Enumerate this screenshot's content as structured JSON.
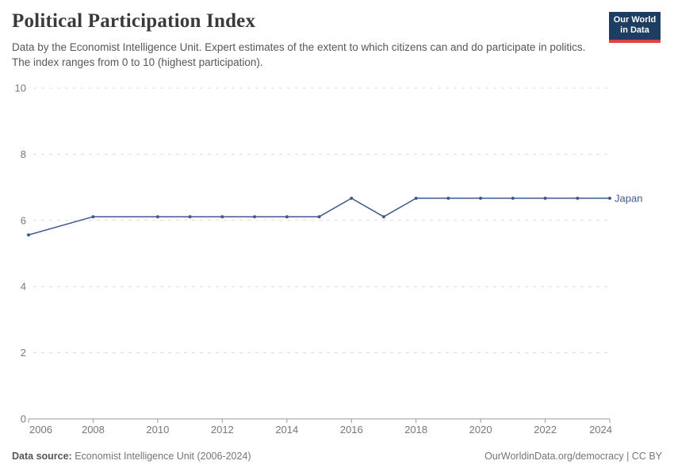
{
  "header": {
    "title": "Political Participation Index",
    "subtitle": "Data by the Economist Intelligence Unit. Expert estimates of the extent to which citizens can and do participate in politics. The index ranges from 0 to 10 (highest participation).",
    "logo": {
      "line1": "Our World",
      "line2": "in Data"
    }
  },
  "chart_data": {
    "type": "line",
    "title": "Political Participation Index",
    "x": [
      2006,
      2008,
      2010,
      2011,
      2012,
      2013,
      2014,
      2015,
      2016,
      2017,
      2018,
      2019,
      2020,
      2021,
      2022,
      2023,
      2024
    ],
    "series": [
      {
        "name": "Japan",
        "color": "#41598c",
        "values": [
          5.56,
          6.11,
          6.11,
          6.11,
          6.11,
          6.11,
          6.11,
          6.11,
          6.67,
          6.11,
          6.67,
          6.67,
          6.67,
          6.67,
          6.67,
          6.67,
          6.67
        ]
      }
    ],
    "xlim": [
      2006,
      2024
    ],
    "ylim": [
      0,
      10
    ],
    "x_tick_labels": [
      "2006",
      "2008",
      "2010",
      "2012",
      "2014",
      "2016",
      "2018",
      "2020",
      "2022",
      "2024"
    ],
    "y_tick_labels": [
      "0",
      "2",
      "4",
      "6",
      "8",
      "10"
    ],
    "grid": "horizontal-dashed",
    "legend_position": "end-of-line"
  },
  "footer": {
    "source_label": "Data source:",
    "source_text": " Economist Intelligence Unit (2006-2024)",
    "link_text": "OurWorldinData.org/democracy | CC BY"
  },
  "colors": {
    "line": "#41598c",
    "grid": "#dcdcdc",
    "axis": "#999999",
    "tick_text": "#787878",
    "logo_bg": "#1d3d63",
    "logo_stripe": "#e04141"
  }
}
